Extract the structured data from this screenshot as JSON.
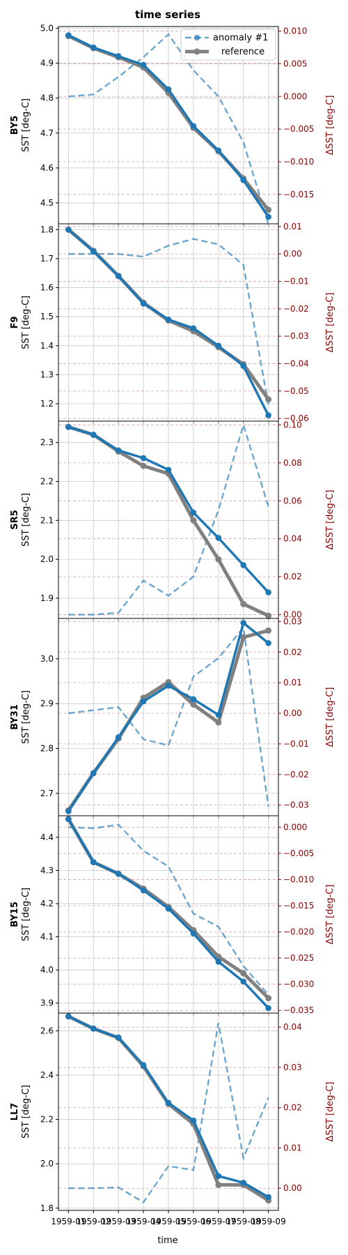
{
  "chart_data": {
    "type": "line",
    "title": "time series",
    "xlabel": "time",
    "x_ticklabels": [
      "1959-01",
      "1959-02",
      "1959-03",
      "1959-04",
      "1959-05",
      "1959-06",
      "1959-07",
      "1959-08",
      "1959-09"
    ],
    "ylabel_left": "SST [deg-C]",
    "ylabel_right": "ΔSST [deg-C]",
    "legend": {
      "position": "top-right",
      "entries": [
        "anomaly #1",
        "reference"
      ]
    },
    "grid": true,
    "colors": {
      "anomaly": "#1f77b4",
      "reference": "#808080",
      "right_axis": "#8b0000"
    },
    "panels": [
      {
        "name": "BY5",
        "ylim": [
          4.44,
          5.005
        ],
        "yticks": [
          4.5,
          4.6,
          4.7,
          4.8,
          4.9,
          5.0
        ],
        "ytick_labels": [
          "4.5",
          "4.6",
          "4.7",
          "4.8",
          "4.9",
          "5.0"
        ],
        "ylim2": [
          -0.0195,
          0.0107
        ],
        "yticks2": [
          -0.015,
          -0.01,
          -0.005,
          0.0,
          0.005,
          0.01
        ],
        "ytick2_labels": [
          "−0.015",
          "−0.010",
          "−0.005",
          "0.000",
          "0.005",
          "0.010"
        ],
        "x": [
          0,
          0.5,
          1,
          1.5,
          2,
          2.5,
          3,
          3.5,
          4
        ],
        "anomaly_sst": [
          4.98,
          4.945,
          4.92,
          4.895,
          4.825,
          4.72,
          4.65,
          4.565,
          4.46
        ],
        "reference_sst": [
          4.978,
          4.943,
          4.917,
          4.888,
          4.815,
          4.715,
          4.648,
          4.57,
          4.48
        ],
        "delta_sst": [
          0.0,
          0.0003,
          0.003,
          0.006,
          0.0095,
          0.004,
          0.0,
          -0.007,
          -0.0195
        ]
      },
      {
        "name": "F9",
        "ylim": [
          1.14,
          1.82
        ],
        "yticks": [
          1.2,
          1.3,
          1.4,
          1.5,
          1.6,
          1.7,
          1.8
        ],
        "ytick_labels": [
          "1.2",
          "1.3",
          "1.4",
          "1.5",
          "1.6",
          "1.7",
          "1.8"
        ],
        "ylim2": [
          -0.061,
          0.011
        ],
        "yticks2": [
          -0.06,
          -0.05,
          -0.04,
          -0.03,
          -0.02,
          -0.01,
          0.0,
          0.01
        ],
        "ytick2_labels": [
          "−0.06",
          "−0.05",
          "−0.04",
          "−0.03",
          "−0.02",
          "−0.01",
          "0.00",
          "0.01"
        ],
        "x": [
          0,
          0.5,
          1,
          1.5,
          2,
          2.5,
          3,
          3.5,
          4
        ],
        "anomaly_sst": [
          1.8,
          1.725,
          1.64,
          1.545,
          1.49,
          1.46,
          1.4,
          1.33,
          1.16
        ],
        "reference_sst": [
          1.8,
          1.727,
          1.64,
          1.548,
          1.487,
          1.45,
          1.395,
          1.336,
          1.215
        ],
        "delta_sst": [
          0.0,
          0.0,
          0.0,
          -0.001,
          0.003,
          0.0055,
          0.0035,
          -0.004,
          -0.055
        ]
      },
      {
        "name": "SR5",
        "ylim": [
          1.848,
          2.355
        ],
        "yticks": [
          1.9,
          2.0,
          2.1,
          2.2,
          2.3
        ],
        "ytick_labels": [
          "1.9",
          "2.0",
          "2.1",
          "2.2",
          "2.3"
        ],
        "ylim2": [
          -0.002,
          0.102
        ],
        "yticks2": [
          0.0,
          0.02,
          0.04,
          0.06,
          0.08,
          0.1
        ],
        "ytick2_labels": [
          "0.00",
          "0.02",
          "0.04",
          "0.06",
          "0.08",
          "0.10"
        ],
        "x": [
          0,
          0.5,
          1,
          1.5,
          2,
          2.5,
          3,
          3.5,
          4
        ],
        "anomaly_sst": [
          2.34,
          2.32,
          2.28,
          2.26,
          2.23,
          2.12,
          2.055,
          1.985,
          1.915
        ],
        "reference_sst": [
          2.34,
          2.32,
          2.277,
          2.24,
          2.22,
          2.1,
          2.0,
          1.885,
          1.855
        ],
        "delta_sst": [
          0.0,
          0.0,
          0.001,
          0.018,
          0.01,
          0.02,
          0.055,
          0.1,
          0.057
        ]
      },
      {
        "name": "BY31",
        "ylim": [
          2.65,
          3.09
        ],
        "yticks": [
          2.7,
          2.8,
          2.9,
          3.0
        ],
        "ytick_labels": [
          "2.7",
          "2.8",
          "2.9",
          "3.0"
        ],
        "ylim2": [
          -0.0335,
          0.031
        ],
        "yticks2": [
          -0.03,
          -0.02,
          -0.01,
          0.0,
          0.01,
          0.02,
          0.03
        ],
        "ytick2_labels": [
          "−0.03",
          "−0.02",
          "−0.01",
          "0.00",
          "0.01",
          "0.02",
          "0.03"
        ],
        "x": [
          0,
          0.5,
          1,
          1.5,
          2,
          2.5,
          3,
          3.5,
          4
        ],
        "anomaly_sst": [
          2.66,
          2.745,
          2.825,
          2.905,
          2.94,
          2.91,
          2.875,
          3.08,
          3.035
        ],
        "reference_sst": [
          2.662,
          2.745,
          2.822,
          2.913,
          2.948,
          2.898,
          2.858,
          3.048,
          3.063
        ],
        "delta_sst": [
          0.0,
          0.001,
          0.002,
          -0.0085,
          -0.0105,
          0.012,
          0.018,
          0.028,
          -0.0305
        ]
      },
      {
        "name": "BY15",
        "ylim": [
          3.87,
          4.465
        ],
        "yticks": [
          3.9,
          4.0,
          4.1,
          4.2,
          4.3,
          4.4
        ],
        "ytick_labels": [
          "3.9",
          "4.0",
          "4.1",
          "4.2",
          "4.3",
          "4.4"
        ],
        "ylim2": [
          -0.0355,
          0.0022
        ],
        "yticks2": [
          -0.035,
          -0.03,
          -0.025,
          -0.02,
          -0.015,
          -0.01,
          -0.005,
          0.0
        ],
        "ytick2_labels": [
          "−0.035",
          "−0.030",
          "−0.025",
          "−0.020",
          "−0.015",
          "−0.010",
          "−0.005",
          "0.000"
        ],
        "x": [
          0,
          0.5,
          1,
          1.5,
          2,
          2.5,
          3,
          3.5,
          4
        ],
        "anomaly_sst": [
          4.455,
          4.325,
          4.29,
          4.24,
          4.185,
          4.11,
          4.025,
          3.965,
          3.885
        ],
        "reference_sst": [
          4.455,
          4.325,
          4.29,
          4.245,
          4.19,
          4.12,
          4.04,
          3.99,
          3.915
        ],
        "delta_sst": [
          0.0,
          -0.0002,
          0.0005,
          -0.0045,
          -0.0075,
          -0.0165,
          -0.019,
          -0.0265,
          -0.032
        ]
      },
      {
        "name": "LL7",
        "ylim": [
          1.79,
          2.68
        ],
        "yticks": [
          1.8,
          2.0,
          2.2,
          2.4,
          2.6
        ],
        "ytick_labels": [
          "1.8",
          "2.0",
          "2.2",
          "2.4",
          "2.6"
        ],
        "ylim2": [
          -0.0055,
          0.0435
        ],
        "yticks2": [
          0.0,
          0.01,
          0.02,
          0.03,
          0.04
        ],
        "ytick2_labels": [
          "0.00",
          "0.01",
          "0.02",
          "0.03",
          "0.04"
        ],
        "x": [
          0,
          0.5,
          1,
          1.5,
          2,
          2.5,
          3,
          3.5,
          4
        ],
        "anomaly_sst": [
          2.665,
          2.61,
          2.57,
          2.445,
          2.275,
          2.195,
          1.945,
          1.915,
          1.85
        ],
        "reference_sst": [
          2.665,
          2.61,
          2.568,
          2.44,
          2.27,
          2.18,
          1.905,
          1.905,
          1.835
        ],
        "delta_sst": [
          0.0,
          0.0,
          0.0002,
          -0.0035,
          0.0055,
          0.0045,
          0.041,
          0.0075,
          0.0225
        ]
      }
    ]
  }
}
